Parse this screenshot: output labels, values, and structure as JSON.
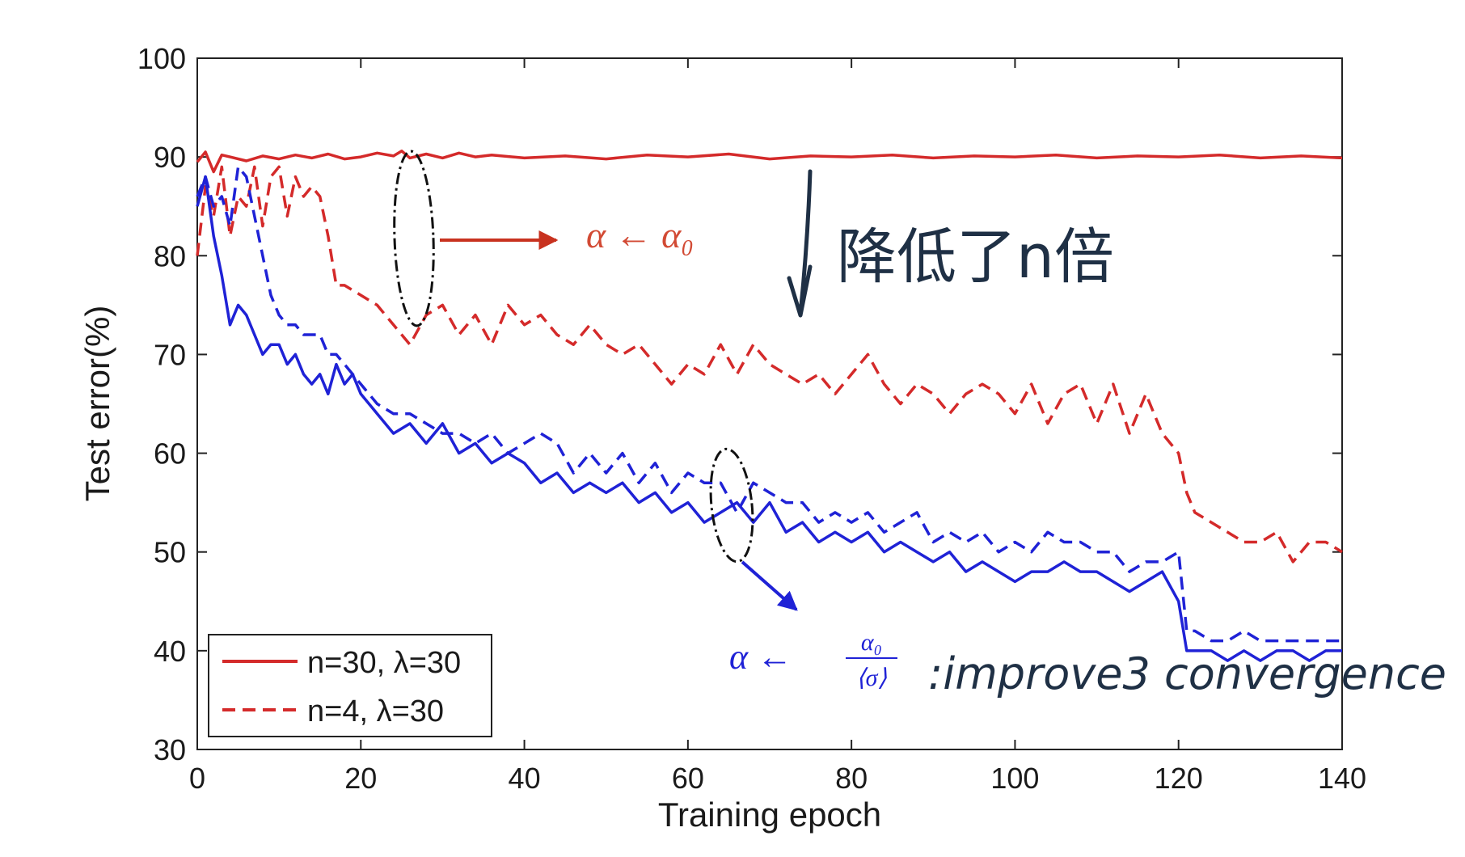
{
  "chart_data": {
    "type": "line",
    "xlabel": "Training epoch",
    "ylabel": "Test error(%)",
    "xlim": [
      0,
      140
    ],
    "ylim": [
      30,
      100
    ],
    "xticks": [
      0,
      20,
      40,
      60,
      80,
      100,
      120,
      140
    ],
    "yticks": [
      30,
      40,
      50,
      60,
      70,
      80,
      90,
      100
    ],
    "grid": false,
    "legend_position": "bottom-left",
    "series": [
      {
        "name": "n=30, λ=30",
        "color": "#d42a2a",
        "style": "solid",
        "x": [
          0,
          1,
          2,
          3,
          4,
          6,
          8,
          10,
          12,
          14,
          16,
          18,
          20,
          22,
          24,
          25,
          26,
          28,
          30,
          32,
          34,
          36,
          40,
          45,
          50,
          55,
          60,
          65,
          70,
          75,
          80,
          85,
          90,
          95,
          100,
          105,
          110,
          115,
          120,
          125,
          130,
          135,
          140
        ],
        "y": [
          89.5,
          90.5,
          88.5,
          90.2,
          90.0,
          89.6,
          90.1,
          89.8,
          90.2,
          89.9,
          90.3,
          89.8,
          90.0,
          90.4,
          90.1,
          90.6,
          89.9,
          90.3,
          89.9,
          90.4,
          90.0,
          90.2,
          89.9,
          90.1,
          89.8,
          90.2,
          90.0,
          90.3,
          89.8,
          90.1,
          90.0,
          90.2,
          89.9,
          90.1,
          90.0,
          90.2,
          89.9,
          90.1,
          90.0,
          90.2,
          89.9,
          90.1,
          89.9
        ]
      },
      {
        "name": "n=4, λ=30",
        "color": "#d42a2a",
        "style": "dashed",
        "x": [
          0,
          1,
          2,
          3,
          4,
          5,
          6,
          7,
          8,
          9,
          10,
          11,
          12,
          13,
          14,
          15,
          16,
          17,
          18,
          20,
          22,
          24,
          26,
          28,
          30,
          32,
          34,
          36,
          38,
          40,
          42,
          44,
          46,
          48,
          50,
          52,
          54,
          56,
          58,
          60,
          62,
          64,
          66,
          68,
          70,
          72,
          74,
          76,
          78,
          80,
          82,
          84,
          86,
          88,
          90,
          92,
          94,
          96,
          98,
          100,
          102,
          104,
          106,
          108,
          110,
          112,
          114,
          116,
          118,
          120,
          121,
          122,
          124,
          126,
          128,
          130,
          132,
          134,
          136,
          138,
          140
        ],
        "y": [
          80,
          87,
          84,
          89,
          82,
          86,
          85,
          89,
          83,
          88,
          89,
          84,
          88,
          86,
          87,
          86,
          82,
          77,
          77,
          76,
          75,
          73,
          71,
          74,
          75,
          72,
          74,
          71,
          75,
          73,
          74,
          72,
          71,
          73,
          71,
          70,
          71,
          69,
          67,
          69,
          68,
          71,
          68,
          71,
          69,
          68,
          67,
          68,
          66,
          68,
          70,
          67,
          65,
          67,
          66,
          64,
          66,
          67,
          66,
          64,
          67,
          63,
          66,
          67,
          63,
          67,
          62,
          66,
          62,
          60,
          56,
          54,
          53,
          52,
          51,
          51,
          52,
          49,
          51,
          51,
          50
        ]
      },
      {
        "name": "",
        "color": "#1f22d6",
        "style": "solid",
        "x": [
          0,
          1,
          2,
          3,
          4,
          5,
          6,
          7,
          8,
          9,
          10,
          11,
          12,
          13,
          14,
          15,
          16,
          17,
          18,
          19,
          20,
          22,
          24,
          26,
          28,
          30,
          32,
          34,
          36,
          38,
          40,
          42,
          44,
          46,
          48,
          50,
          52,
          54,
          56,
          58,
          60,
          62,
          64,
          66,
          68,
          70,
          72,
          74,
          76,
          78,
          80,
          82,
          84,
          86,
          88,
          90,
          92,
          94,
          96,
          98,
          100,
          102,
          104,
          106,
          108,
          110,
          112,
          114,
          116,
          118,
          120,
          121,
          122,
          124,
          126,
          128,
          130,
          132,
          134,
          136,
          138,
          140
        ],
        "y": [
          85,
          88,
          82,
          78,
          73,
          75,
          74,
          72,
          70,
          71,
          71,
          69,
          70,
          68,
          67,
          68,
          66,
          69,
          67,
          68,
          66,
          64,
          62,
          63,
          61,
          63,
          60,
          61,
          59,
          60,
          59,
          57,
          58,
          56,
          57,
          56,
          57,
          55,
          56,
          54,
          55,
          53,
          54,
          55,
          53,
          55,
          52,
          53,
          51,
          52,
          51,
          52,
          50,
          51,
          50,
          49,
          50,
          48,
          49,
          48,
          47,
          48,
          48,
          49,
          48,
          48,
          47,
          46,
          47,
          48,
          45,
          40,
          40,
          40,
          39,
          40,
          39,
          40,
          40,
          39,
          40,
          40
        ]
      },
      {
        "name": "",
        "color": "#1f22d6",
        "style": "dashed",
        "x": [
          0,
          1,
          2,
          3,
          4,
          5,
          6,
          7,
          8,
          9,
          10,
          11,
          12,
          13,
          14,
          15,
          16,
          17,
          18,
          19,
          20,
          22,
          24,
          26,
          28,
          30,
          32,
          34,
          36,
          38,
          40,
          42,
          44,
          46,
          48,
          50,
          52,
          54,
          56,
          58,
          60,
          62,
          64,
          66,
          68,
          70,
          72,
          74,
          76,
          78,
          80,
          82,
          84,
          86,
          88,
          90,
          92,
          94,
          96,
          98,
          100,
          102,
          104,
          106,
          108,
          110,
          112,
          114,
          116,
          118,
          120,
          121,
          122,
          124,
          126,
          128,
          130,
          132,
          134,
          136,
          138,
          140
        ],
        "y": [
          86,
          88,
          85,
          86,
          83,
          89,
          88,
          84,
          80,
          76,
          74,
          73,
          73,
          72,
          72,
          72,
          70,
          70,
          69,
          68,
          67,
          65,
          64,
          64,
          63,
          62,
          62,
          61,
          62,
          60,
          61,
          62,
          61,
          58,
          60,
          58,
          60,
          57,
          59,
          56,
          58,
          57,
          57,
          54,
          57,
          56,
          55,
          55,
          53,
          54,
          53,
          54,
          52,
          53,
          54,
          51,
          52,
          51,
          52,
          50,
          51,
          50,
          52,
          51,
          51,
          50,
          50,
          48,
          49,
          49,
          50,
          42,
          42,
          41,
          41,
          42,
          41,
          41,
          41,
          41,
          41,
          41
        ]
      }
    ],
    "annotations": {
      "alpha_plain": "α ← α₀",
      "alpha_scaled_lhs": "α ←",
      "alpha_scaled_num": "α₀",
      "alpha_scaled_den": "⟨σ⟩",
      "handwritten_cn": "降低了n倍",
      "handwritten_en": ":improve3 convergence"
    }
  }
}
